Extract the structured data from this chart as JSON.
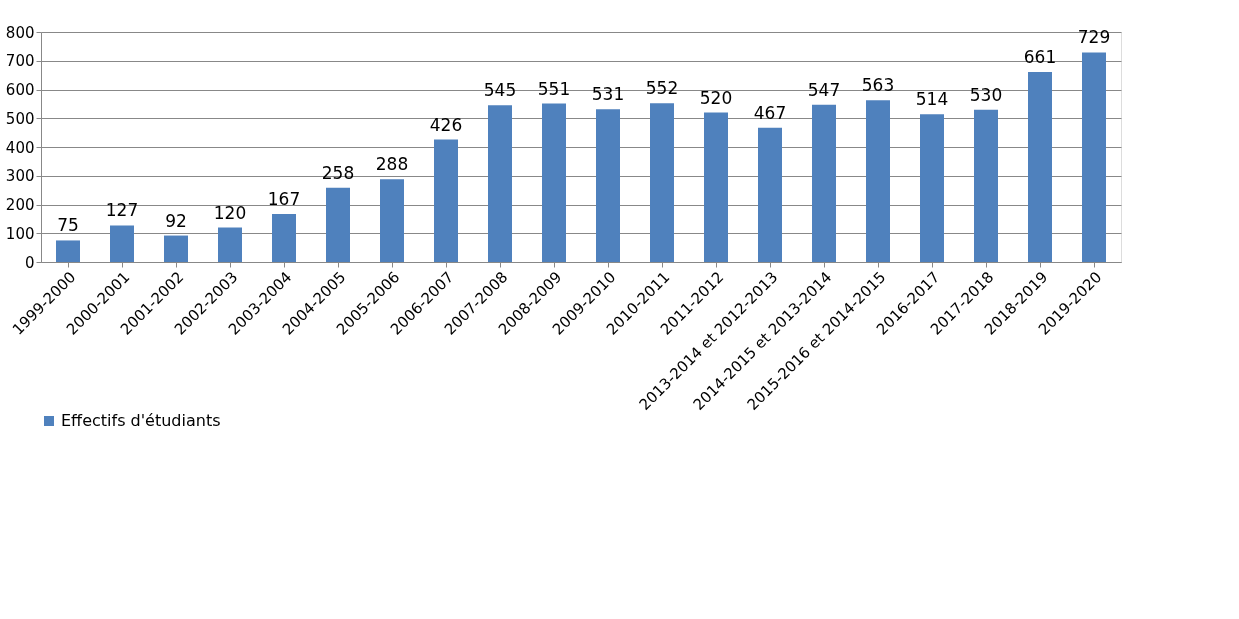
{
  "chart_data": {
    "type": "bar",
    "categories": [
      "1999-2000",
      "2000-2001",
      "2001-2002",
      "2002-2003",
      "2003-2004",
      "2004-2005",
      "2005-2006",
      "2006-2007",
      "2007-2008",
      "2008-2009",
      "2009-2010",
      "2010-2011",
      "2011-2012",
      "2013-2014 et 2012-2013",
      "2014-2015 et 2013-2014",
      "2015-2016 et 2014-2015",
      "2016-2017",
      "2017-2018",
      "2018-2019",
      "2019-2020"
    ],
    "series": [
      {
        "name": "Effectifs d'étudiants",
        "color": "#4f81bd",
        "values": [
          75,
          127,
          92,
          120,
          167,
          258,
          288,
          426,
          545,
          551,
          531,
          552,
          520,
          467,
          547,
          563,
          514,
          530,
          661,
          729
        ]
      }
    ],
    "ylim": [
      0,
      800
    ],
    "yticks": [
      0,
      100,
      200,
      300,
      400,
      500,
      600,
      700,
      800
    ],
    "grid": "y",
    "legend": "bottom",
    "data_labels": true
  }
}
